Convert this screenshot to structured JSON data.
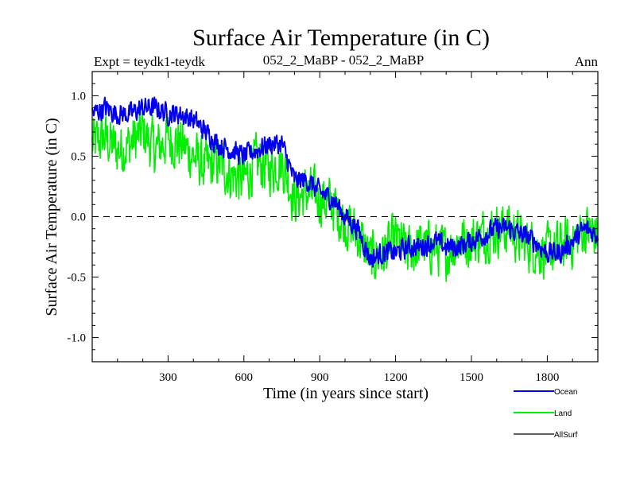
{
  "chart_data": {
    "type": "line",
    "title": "Surface Air Temperature (in C)",
    "subtitle_left": "Expt = teydk1-teydk",
    "subtitle_center": "052_2_MaBP - 052_2_MaBP",
    "subtitle_right": "Ann",
    "xlabel": "Time (in years since start)",
    "ylabel": "Surface Air Temperature (in C)",
    "xlim": [
      0,
      2000
    ],
    "ylim": [
      -1.2,
      1.2
    ],
    "xticks": [
      300,
      600,
      900,
      1200,
      1500,
      1800
    ],
    "xtick_labels": [
      "300",
      "600",
      "900",
      "1200",
      "1500",
      "1800"
    ],
    "yticks": [
      1.0,
      0.5,
      0.0,
      -0.5,
      -1.0
    ],
    "ytick_labels": [
      "1.0",
      "0.5",
      "0.0",
      "-0.5",
      "-1.0"
    ],
    "zero_line": "dashed",
    "legend_position": "bottom-right",
    "series": [
      {
        "name": "Land",
        "color": "#00ee00",
        "x": [
          0,
          50,
          100,
          150,
          200,
          250,
          300,
          350,
          400,
          450,
          500,
          550,
          600,
          650,
          700,
          750,
          800,
          850,
          900,
          950,
          1000,
          1050,
          1100,
          1150,
          1200,
          1250,
          1300,
          1350,
          1400,
          1450,
          1500,
          1550,
          1600,
          1650,
          1700,
          1750,
          1800,
          1850,
          1900,
          1950,
          2000
        ],
        "values": [
          0.6,
          0.65,
          0.55,
          0.6,
          0.7,
          0.55,
          0.65,
          0.6,
          0.5,
          0.4,
          0.45,
          0.35,
          0.3,
          0.45,
          0.4,
          0.45,
          0.15,
          0.2,
          0.15,
          0.1,
          -0.05,
          -0.15,
          -0.35,
          -0.3,
          -0.2,
          -0.3,
          -0.25,
          -0.25,
          -0.3,
          -0.2,
          -0.2,
          -0.15,
          -0.1,
          -0.1,
          -0.2,
          -0.25,
          -0.3,
          -0.25,
          -0.2,
          -0.1,
          -0.15
        ],
        "amplitude": 0.3
      },
      {
        "name": "Ocean",
        "color": "#0000ee",
        "x": [
          0,
          50,
          100,
          150,
          200,
          250,
          300,
          350,
          400,
          450,
          500,
          550,
          600,
          650,
          700,
          750,
          800,
          850,
          900,
          950,
          1000,
          1050,
          1100,
          1150,
          1200,
          1250,
          1300,
          1350,
          1400,
          1450,
          1500,
          1550,
          1600,
          1650,
          1700,
          1750,
          1800,
          1850,
          1900,
          1950,
          2000
        ],
        "values": [
          0.85,
          0.9,
          0.85,
          0.85,
          0.9,
          0.9,
          0.85,
          0.85,
          0.8,
          0.7,
          0.6,
          0.55,
          0.5,
          0.55,
          0.6,
          0.6,
          0.3,
          0.3,
          0.2,
          0.15,
          0.0,
          -0.1,
          -0.35,
          -0.3,
          -0.3,
          -0.25,
          -0.25,
          -0.2,
          -0.25,
          -0.25,
          -0.2,
          -0.15,
          -0.1,
          -0.1,
          -0.15,
          -0.2,
          -0.3,
          -0.3,
          -0.2,
          -0.1,
          -0.15
        ],
        "amplitude": 0.12
      },
      {
        "name": "AllSurf",
        "color": "#000000",
        "x": [],
        "values": [],
        "amplitude": 0
      }
    ]
  }
}
